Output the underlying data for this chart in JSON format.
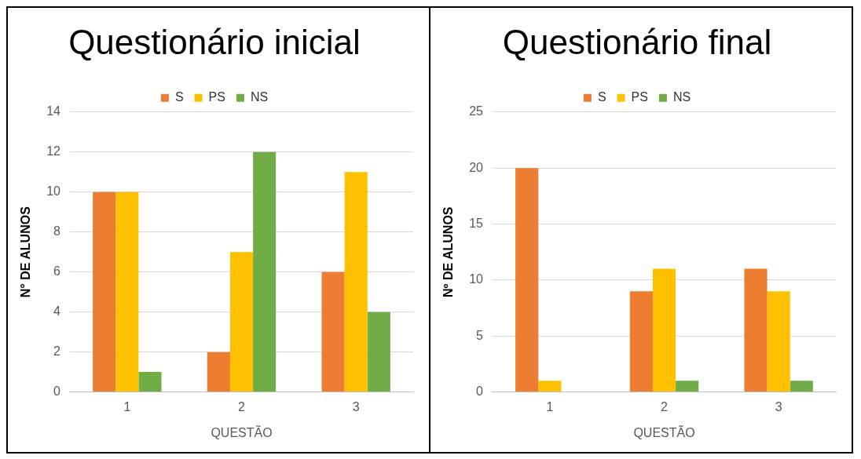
{
  "chart_data": [
    {
      "type": "bar",
      "title": "Questionário inicial",
      "xlabel": "QUESTÃO",
      "ylabel": "N° DE ALUNOS",
      "categories": [
        "1",
        "2",
        "3"
      ],
      "series": [
        {
          "name": "S",
          "color": "#ed7d31",
          "values": [
            10,
            2,
            6
          ]
        },
        {
          "name": "PS",
          "color": "#ffc000",
          "values": [
            10,
            7,
            11
          ]
        },
        {
          "name": "NS",
          "color": "#70ad47",
          "values": [
            1,
            12,
            4
          ]
        }
      ],
      "ylim": [
        0,
        14
      ],
      "yticks": [
        0,
        2,
        4,
        6,
        8,
        10,
        12,
        14
      ],
      "grid": "y",
      "legend": "top"
    },
    {
      "type": "bar",
      "title": "Questionário final",
      "xlabel": "QUESTÃO",
      "ylabel": "Nº DE ALUNOS",
      "categories": [
        "1",
        "2",
        "3"
      ],
      "series": [
        {
          "name": "S",
          "color": "#ed7d31",
          "values": [
            20,
            9,
            11
          ]
        },
        {
          "name": "PS",
          "color": "#ffc000",
          "values": [
            1,
            11,
            9
          ]
        },
        {
          "name": "NS",
          "color": "#70ad47",
          "values": [
            0,
            1,
            1
          ]
        }
      ],
      "ylim": [
        0,
        25
      ],
      "yticks": [
        0,
        5,
        10,
        15,
        20,
        25
      ],
      "grid": "y",
      "legend": "top"
    }
  ]
}
